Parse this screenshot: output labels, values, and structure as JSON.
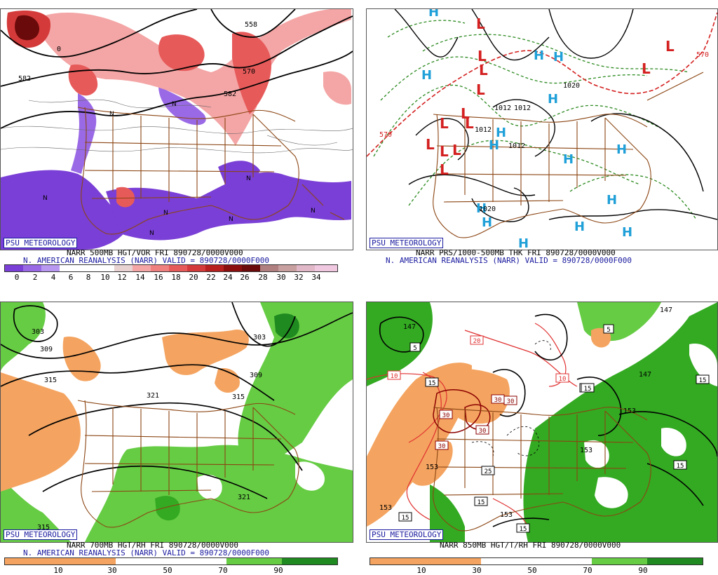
{
  "colors": {
    "vort_pos": [
      "#e8d2d2",
      "#f4a5a5",
      "#f08080",
      "#e75a5a",
      "#d43a3a",
      "#b81f1f",
      "#8c0f0f",
      "#6a0a0a",
      "#b08080",
      "#c8a0a0",
      "#e0b8c8",
      "#f0c8e0"
    ],
    "vort_neg": [
      "#7a3fd6",
      "#9a6ae6",
      "#b898f0"
    ],
    "rh_dry": "#f4a460",
    "rh_moist": [
      "#66cc44",
      "#33aa22",
      "#1f8a1f"
    ],
    "land_border": "#8b4513",
    "brand": "#1a1aa0"
  },
  "panels": {
    "p1": {
      "brand": "PSU METEOROLOGY",
      "caption1": "NARR 500MB HGT/VOR FRI 890728/0000V000",
      "caption2": "N. AMERICAN REANALYSIS (NARR) VALID = 890728/0000F000",
      "contour_labels": [
        "558",
        "582",
        "570",
        "582",
        "0"
      ],
      "ticks": [
        "0",
        "2",
        "4",
        "6",
        "8",
        "10",
        "12",
        "14",
        "16",
        "18",
        "20",
        "22",
        "24",
        "26",
        "28",
        "30",
        "32",
        "34"
      ]
    },
    "p2": {
      "brand": "PSU METEOROLOGY",
      "caption1": "NARR PRS/1000-500MB THK FRI 890728/0000V000",
      "caption2": "N. AMERICAN REANALYSIS (NARR) VALID = 890728/0000F000",
      "contour_labels": [
        "570",
        "570",
        "1012",
        "1012",
        "1012",
        "1012",
        "1020",
        "1020"
      ],
      "lows": [
        "L",
        "L",
        "L",
        "L",
        "L",
        "L",
        "L",
        "L",
        "L",
        "L",
        "L",
        "L",
        "L"
      ],
      "highs": [
        "H",
        "H",
        "H",
        "H",
        "H",
        "H",
        "H",
        "H",
        "H",
        "H",
        "H",
        "H",
        "H",
        "H",
        "H"
      ]
    },
    "p3": {
      "brand": "PSU METEOROLOGY",
      "caption1": "NARR 700MB HGT/RH FRI 890728/0000V000",
      "caption2": "N. AMERICAN REANALYSIS (NARR) VALID = 890728/0000F000",
      "contour_labels": [
        "303",
        "309",
        "315",
        "321",
        "303",
        "309",
        "315",
        "321",
        "315"
      ],
      "ticks": [
        "10",
        "30",
        "50",
        "70",
        "90"
      ]
    },
    "p4": {
      "brand": "PSU METEOROLOGY",
      "caption1": "NARR 850MB HGT/T/RH FRI 890728/0000V000",
      "ticks": [
        "10",
        "30",
        "50",
        "70",
        "90"
      ],
      "contour_labels": [
        "147",
        "153",
        "153",
        "153",
        "147",
        "153",
        "153",
        "147"
      ],
      "box_labels": [
        "5",
        "10",
        "15",
        "15",
        "20",
        "10",
        "30",
        "30",
        "30",
        "30",
        "30",
        "25",
        "15",
        "15",
        "5",
        "15",
        "15",
        "15",
        "15",
        "15"
      ]
    }
  }
}
